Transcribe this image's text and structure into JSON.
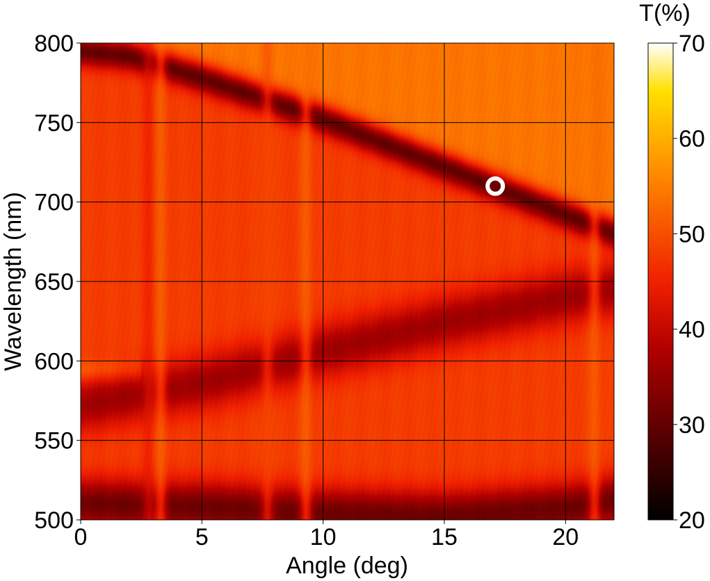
{
  "chart_data": {
    "type": "heatmap",
    "xlabel": "Angle (deg)",
    "ylabel": "Wavelength (nm)",
    "xlim": [
      0,
      22
    ],
    "ylim": [
      500,
      800
    ],
    "x_ticks": [
      0,
      5,
      10,
      15,
      20
    ],
    "y_ticks": [
      500,
      550,
      600,
      650,
      700,
      750,
      800
    ],
    "grid": true,
    "colorscale": "hot",
    "colorbar": {
      "label": "T(%)",
      "range": [
        20,
        70
      ],
      "ticks": [
        20,
        30,
        40,
        50,
        60,
        70
      ]
    },
    "background_level": 48,
    "bands": [
      {
        "name": "upper dip",
        "points": [
          [
            0,
            795
          ],
          [
            2,
            792
          ],
          [
            5,
            778
          ],
          [
            10,
            752
          ],
          [
            15,
            722
          ],
          [
            17,
            710
          ],
          [
            20,
            692
          ],
          [
            22,
            680
          ]
        ],
        "depth": 30,
        "width_nm": 13
      },
      {
        "name": "middle dip",
        "points": [
          [
            0,
            572
          ],
          [
            5,
            586
          ],
          [
            10,
            606
          ],
          [
            15,
            624
          ],
          [
            20,
            640
          ],
          [
            22,
            645
          ]
        ],
        "depth": 36,
        "width_nm": 24
      },
      {
        "name": "lower dip",
        "points": [
          [
            0,
            510
          ],
          [
            5,
            508
          ],
          [
            10,
            504
          ],
          [
            15,
            502
          ],
          [
            20,
            507
          ],
          [
            22,
            512
          ]
        ],
        "depth": 31,
        "width_nm": 22
      }
    ],
    "bright_regions": [
      {
        "name": "upper-right bright",
        "level": 54
      },
      {
        "name": "left bright patch",
        "x": [
          0,
          2.5
        ],
        "y": [
          585,
          600
        ],
        "level": 54
      }
    ],
    "vertical_features": [
      {
        "x": 2.8,
        "level": 44
      },
      {
        "x": 3.3,
        "level": 53
      },
      {
        "x": 7.7,
        "level": 50
      },
      {
        "x": 9.3,
        "level": 53
      },
      {
        "x": 21.2,
        "level": 53
      }
    ],
    "marker": {
      "type": "circle",
      "x": 17.1,
      "y": 710,
      "color": "#ffffff"
    }
  }
}
